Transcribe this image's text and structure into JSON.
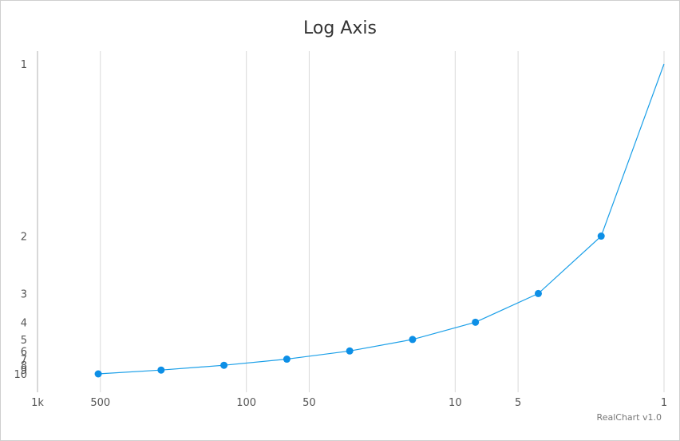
{
  "chart_data": {
    "type": "line",
    "title": "Log Axis",
    "xlabel": "",
    "ylabel": "",
    "x_axis": {
      "scale": "log",
      "reversed": true,
      "range": [
        1000,
        1
      ],
      "ticks": [
        "1k",
        "500",
        "100",
        "50",
        "10",
        "5",
        "1"
      ],
      "tick_values": [
        1000,
        500,
        100,
        50,
        10,
        5,
        1
      ],
      "grid": true
    },
    "y_axis": {
      "scale": "reciprocal",
      "reversed": true,
      "range": [
        1,
        10
      ],
      "ticks": [
        "1",
        "2",
        "3",
        "4",
        "5",
        "6",
        "7",
        "8",
        "9",
        "10"
      ],
      "tick_values": [
        1,
        2,
        3,
        4,
        5,
        6,
        7,
        8,
        9,
        10
      ],
      "grid": false
    },
    "series": [
      {
        "x": [
          512,
          256,
          128,
          64,
          32,
          16,
          8,
          4,
          2,
          1
        ],
        "y": [
          10,
          9,
          8,
          7,
          6,
          5,
          4,
          3,
          2,
          1
        ],
        "markers": [
          true,
          true,
          true,
          true,
          true,
          true,
          true,
          true,
          true,
          false
        ]
      }
    ],
    "legend": "none",
    "colors": {
      "line": "#1a9fe8",
      "marker": "#0d8fe6",
      "grid": "#d9d9d9",
      "axis": "#b0b0b0"
    }
  },
  "credit": "RealChart v1.0"
}
